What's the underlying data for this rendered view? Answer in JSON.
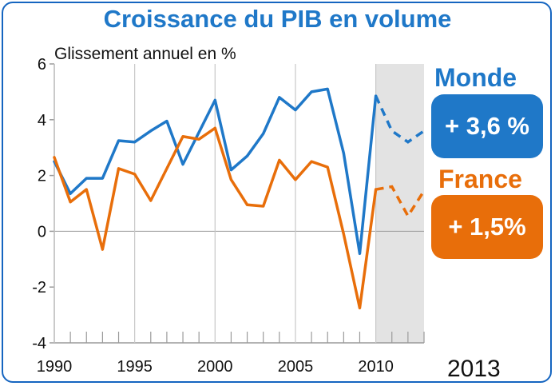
{
  "chart_data": {
    "type": "line",
    "title": "Croissance du PIB en volume",
    "subtitle": "Glissement annuel en %",
    "corner_year": "2013",
    "ylim": [
      -4,
      6
    ],
    "y_ticks": [
      "6",
      "4",
      "2",
      "0",
      "-2",
      "-4"
    ],
    "xlim": [
      1990,
      2013
    ],
    "x_ticks": [
      "1990",
      "1995",
      "2000",
      "2005",
      "2010"
    ],
    "forecast_region": [
      2010,
      2013
    ],
    "forecast_shading_color": "#e3e3e3",
    "x": [
      1990,
      1991,
      1992,
      1993,
      1994,
      1995,
      1996,
      1997,
      1998,
      1999,
      2000,
      2001,
      2002,
      2003,
      2004,
      2005,
      2006,
      2007,
      2008,
      2009,
      2010
    ],
    "series": [
      {
        "name": "Monde",
        "badge": "+ 3,6 %",
        "color": "#1f78c8",
        "values": [
          2.5,
          1.35,
          1.9,
          1.9,
          3.25,
          3.2,
          3.6,
          3.95,
          2.4,
          3.55,
          4.7,
          2.2,
          2.7,
          3.5,
          4.8,
          4.35,
          5.0,
          5.1,
          2.8,
          -0.8,
          4.85
        ],
        "forecast_x": [
          2010,
          2011,
          2012,
          2013
        ],
        "forecast_values": [
          4.85,
          3.6,
          3.2,
          3.6
        ]
      },
      {
        "name": "France",
        "badge": "+ 1,5%",
        "color": "#e86e0a",
        "values": [
          2.65,
          1.05,
          1.5,
          -0.65,
          2.25,
          2.05,
          1.1,
          2.25,
          3.4,
          3.3,
          3.7,
          1.85,
          0.95,
          0.9,
          2.55,
          1.85,
          2.5,
          2.3,
          -0.1,
          -2.75,
          1.5
        ],
        "forecast_x": [
          2010,
          2011,
          2012,
          2013
        ],
        "forecast_values": [
          1.5,
          1.6,
          0.55,
          1.45
        ]
      }
    ],
    "grid": false
  }
}
